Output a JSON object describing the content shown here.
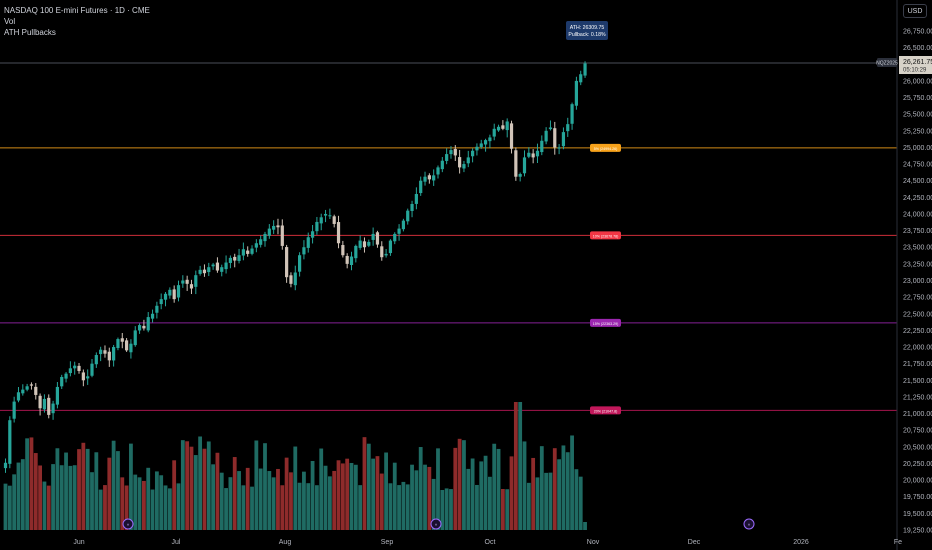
{
  "header": {
    "title": "NASDAQ 100 E-mini Futures · 1D · CME",
    "indicator_1": "Vol",
    "indicator_2": "ATH Pullbacks"
  },
  "currency_button": "USD",
  "ath_tooltip": {
    "line1": "ATH: 26309.75",
    "line2": "Pullback: 0.18%"
  },
  "price_tag": {
    "symbol": "NQZ2025",
    "price": "26,261.75",
    "countdown": "05:10:29"
  },
  "pullback_levels": [
    {
      "label": "5% (24994.26)",
      "value": 24994.26,
      "color": "#f7a21b"
    },
    {
      "label": "10% (23678.78)",
      "value": 23678.78,
      "color": "#f23645"
    },
    {
      "label": "15% (22363.29)",
      "value": 22363.29,
      "color": "#9c27b0"
    },
    {
      "label": "20% (21047.8)",
      "value": 21047.8,
      "color": "#c2185b"
    }
  ],
  "colors": {
    "up": "#26a69a",
    "down": "#d1c4b8",
    "vol_up": "#1f6b63",
    "vol_down": "#8e2b2b",
    "axis_text": "#b2b5be",
    "ath_line": "#4a4e59"
  },
  "chart_data": {
    "type": "candlestick",
    "title": "NASDAQ 100 E-mini Futures · 1D · CME",
    "y_axis_ticks": [
      "26,750.00",
      "26,500.00",
      "26,250.00",
      "26,000.00",
      "25,750.00",
      "25,500.00",
      "25,250.00",
      "25,000.00",
      "24,750.00",
      "24,500.00",
      "24,250.00",
      "24,000.00",
      "23,750.00",
      "23,500.00",
      "23,250.00",
      "23,000.00",
      "22,750.00",
      "22,500.00",
      "22,250.00",
      "22,000.00",
      "21,750.00",
      "21,500.00",
      "21,250.00",
      "21,000.00",
      "20,750.00",
      "20,500.00",
      "20,250.00",
      "20,000.00",
      "19,750.00",
      "19,500.00",
      "19,250.00"
    ],
    "x_axis_ticks": [
      "Jun",
      "Jul",
      "Aug",
      "Sep",
      "Oct",
      "Nov",
      "Dec",
      "2026",
      "Fe"
    ],
    "ylim": [
      19150,
      26950
    ],
    "grid": false,
    "closes": [
      20260,
      20900,
      21180,
      21320,
      21360,
      21410,
      21420,
      21280,
      21080,
      21220,
      20980,
      21150,
      21400,
      21550,
      21600,
      21680,
      21720,
      21640,
      21500,
      21560,
      21750,
      21880,
      21960,
      21900,
      21800,
      22000,
      22120,
      22080,
      21950,
      22050,
      22250,
      22330,
      22280,
      22450,
      22500,
      22620,
      22720,
      22800,
      22860,
      22720,
      22930,
      23000,
      22950,
      22880,
      23080,
      23160,
      23110,
      23200,
      23240,
      23150,
      23200,
      23270,
      23340,
      23300,
      23380,
      23470,
      23400,
      23480,
      23560,
      23620,
      23700,
      23780,
      23820,
      23800,
      23520,
      23050,
      22950,
      23120,
      23380,
      23500,
      23650,
      23740,
      23880,
      23950,
      24000,
      23980,
      23850,
      23560,
      23380,
      23250,
      23360,
      23520,
      23600,
      23500,
      23580,
      23700,
      23540,
      23350,
      23400,
      23600,
      23700,
      23780,
      23900,
      24050,
      24150,
      24300,
      24500,
      24560,
      24520,
      24580,
      24700,
      24800,
      24900,
      24960,
      24880,
      24700,
      24750,
      24850,
      24950,
      25010,
      25060,
      25110,
      25150,
      25280,
      25310,
      25280,
      25390,
      24980,
      24560,
      24600,
      24850,
      24920,
      24850,
      24950,
      25100,
      25250,
      25300,
      25000,
      25000,
      25230,
      25350,
      25650,
      26000,
      26100,
      26261.75
    ],
    "volume_scale": "relative"
  }
}
